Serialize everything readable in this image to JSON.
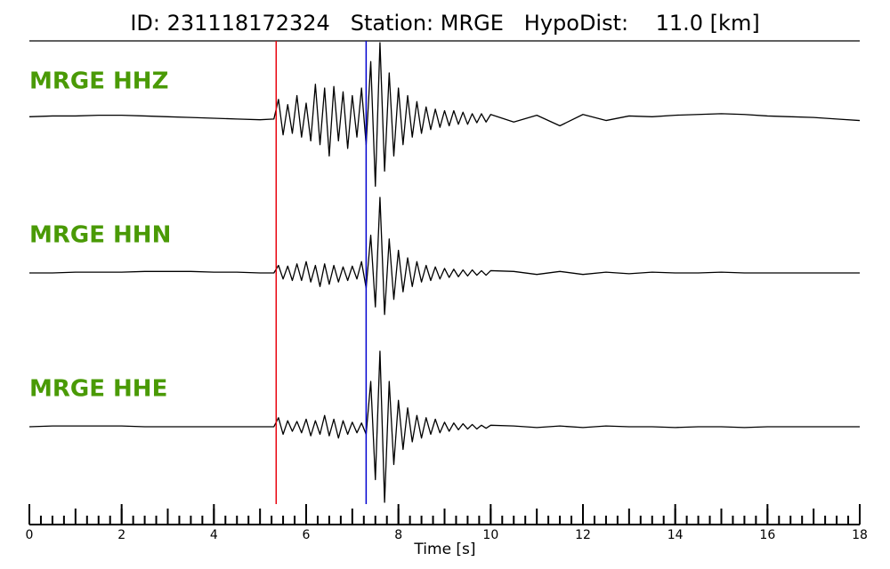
{
  "chart_data": {
    "type": "seismogram",
    "title": "ID: 231118172324   Station: MRGE   HypoDist:    11.0 [km]",
    "xlabel": "Time [s]",
    "xlim": [
      0,
      18
    ],
    "xticks": [
      0,
      2,
      4,
      6,
      8,
      10,
      12,
      14,
      16,
      18
    ],
    "xminor": 0.25,
    "ylim": [
      -1,
      1
    ],
    "label_color": "#4a9a06",
    "x": [
      0,
      0.5,
      1,
      1.5,
      2,
      2.5,
      3,
      3.5,
      4,
      4.5,
      5,
      5.3,
      5.4,
      5.5,
      5.6,
      5.7,
      5.8,
      5.9,
      6.0,
      6.1,
      6.2,
      6.3,
      6.4,
      6.5,
      6.6,
      6.7,
      6.8,
      6.9,
      7.0,
      7.1,
      7.2,
      7.3,
      7.4,
      7.5,
      7.6,
      7.7,
      7.8,
      7.9,
      8.0,
      8.1,
      8.2,
      8.3,
      8.4,
      8.5,
      8.6,
      8.7,
      8.8,
      8.9,
      9.0,
      9.1,
      9.2,
      9.3,
      9.4,
      9.5,
      9.6,
      9.7,
      9.8,
      9.9,
      10.0,
      10.5,
      11,
      11.5,
      12,
      12.5,
      13,
      13.5,
      14,
      14.5,
      15,
      15.5,
      16,
      16.5,
      17,
      17.5,
      18
    ],
    "series": [
      {
        "name": "MRGE HHZ",
        "color": "#000000",
        "values": [
          0.02,
          0.03,
          0.03,
          0.04,
          0.04,
          0.03,
          0.02,
          0.01,
          0.0,
          -0.01,
          -0.02,
          -0.01,
          0.25,
          -0.22,
          0.18,
          -0.2,
          0.3,
          -0.25,
          0.2,
          -0.3,
          0.45,
          -0.35,
          0.4,
          -0.5,
          0.42,
          -0.3,
          0.35,
          -0.4,
          0.3,
          -0.25,
          0.4,
          -0.35,
          0.75,
          -0.9,
          1.0,
          -0.7,
          0.6,
          -0.5,
          0.4,
          -0.35,
          0.3,
          -0.25,
          0.22,
          -0.2,
          0.15,
          -0.15,
          0.12,
          -0.12,
          0.1,
          -0.1,
          0.1,
          -0.08,
          0.08,
          -0.08,
          0.06,
          -0.06,
          0.06,
          -0.05,
          0.05,
          -0.05,
          0.04,
          -0.1,
          0.05,
          -0.03,
          0.03,
          0.02,
          0.04,
          0.05,
          0.06,
          0.05,
          0.03,
          0.02,
          0.01,
          -0.01,
          -0.03
        ]
      },
      {
        "name": "MRGE HHN",
        "color": "#000000",
        "values": [
          0.0,
          0.0,
          0.01,
          0.01,
          0.01,
          0.02,
          0.02,
          0.02,
          0.01,
          0.01,
          0.0,
          0.0,
          0.1,
          -0.08,
          0.09,
          -0.1,
          0.12,
          -0.1,
          0.15,
          -0.12,
          0.1,
          -0.18,
          0.12,
          -0.15,
          0.1,
          -0.12,
          0.08,
          -0.1,
          0.09,
          -0.08,
          0.15,
          -0.2,
          0.5,
          -0.45,
          1.0,
          -0.55,
          0.45,
          -0.35,
          0.3,
          -0.25,
          0.2,
          -0.18,
          0.15,
          -0.12,
          0.1,
          -0.1,
          0.08,
          -0.08,
          0.06,
          -0.06,
          0.05,
          -0.05,
          0.04,
          -0.04,
          0.04,
          -0.03,
          0.03,
          -0.03,
          0.03,
          0.02,
          -0.02,
          0.02,
          -0.02,
          0.01,
          -0.01,
          0.01,
          0.0,
          0.0,
          0.01,
          0.0,
          0.0,
          0.0,
          0.0,
          0.0,
          0.0
        ]
      },
      {
        "name": "MRGE HHE",
        "color": "#000000",
        "values": [
          0.0,
          0.01,
          0.01,
          0.01,
          0.01,
          0.0,
          0.0,
          0.0,
          0.0,
          0.0,
          0.0,
          0.0,
          0.12,
          -0.1,
          0.08,
          -0.06,
          0.07,
          -0.08,
          0.1,
          -0.12,
          0.08,
          -0.1,
          0.15,
          -0.12,
          0.1,
          -0.15,
          0.08,
          -0.1,
          0.06,
          -0.08,
          0.05,
          -0.1,
          0.6,
          -0.7,
          1.0,
          -1.0,
          0.6,
          -0.5,
          0.35,
          -0.3,
          0.25,
          -0.2,
          0.15,
          -0.15,
          0.12,
          -0.1,
          0.1,
          -0.08,
          0.06,
          -0.06,
          0.05,
          -0.04,
          0.04,
          -0.03,
          0.03,
          -0.03,
          0.02,
          -0.02,
          0.02,
          0.01,
          -0.01,
          0.01,
          -0.01,
          0.01,
          0.0,
          0.0,
          -0.01,
          0.0,
          0.0,
          -0.01,
          0.0,
          0.0,
          0.0,
          0.0,
          0.0
        ]
      }
    ],
    "markers": [
      {
        "x": 5.35,
        "color": "#e8000b"
      },
      {
        "x": 7.3,
        "color": "#0000d0"
      }
    ]
  }
}
